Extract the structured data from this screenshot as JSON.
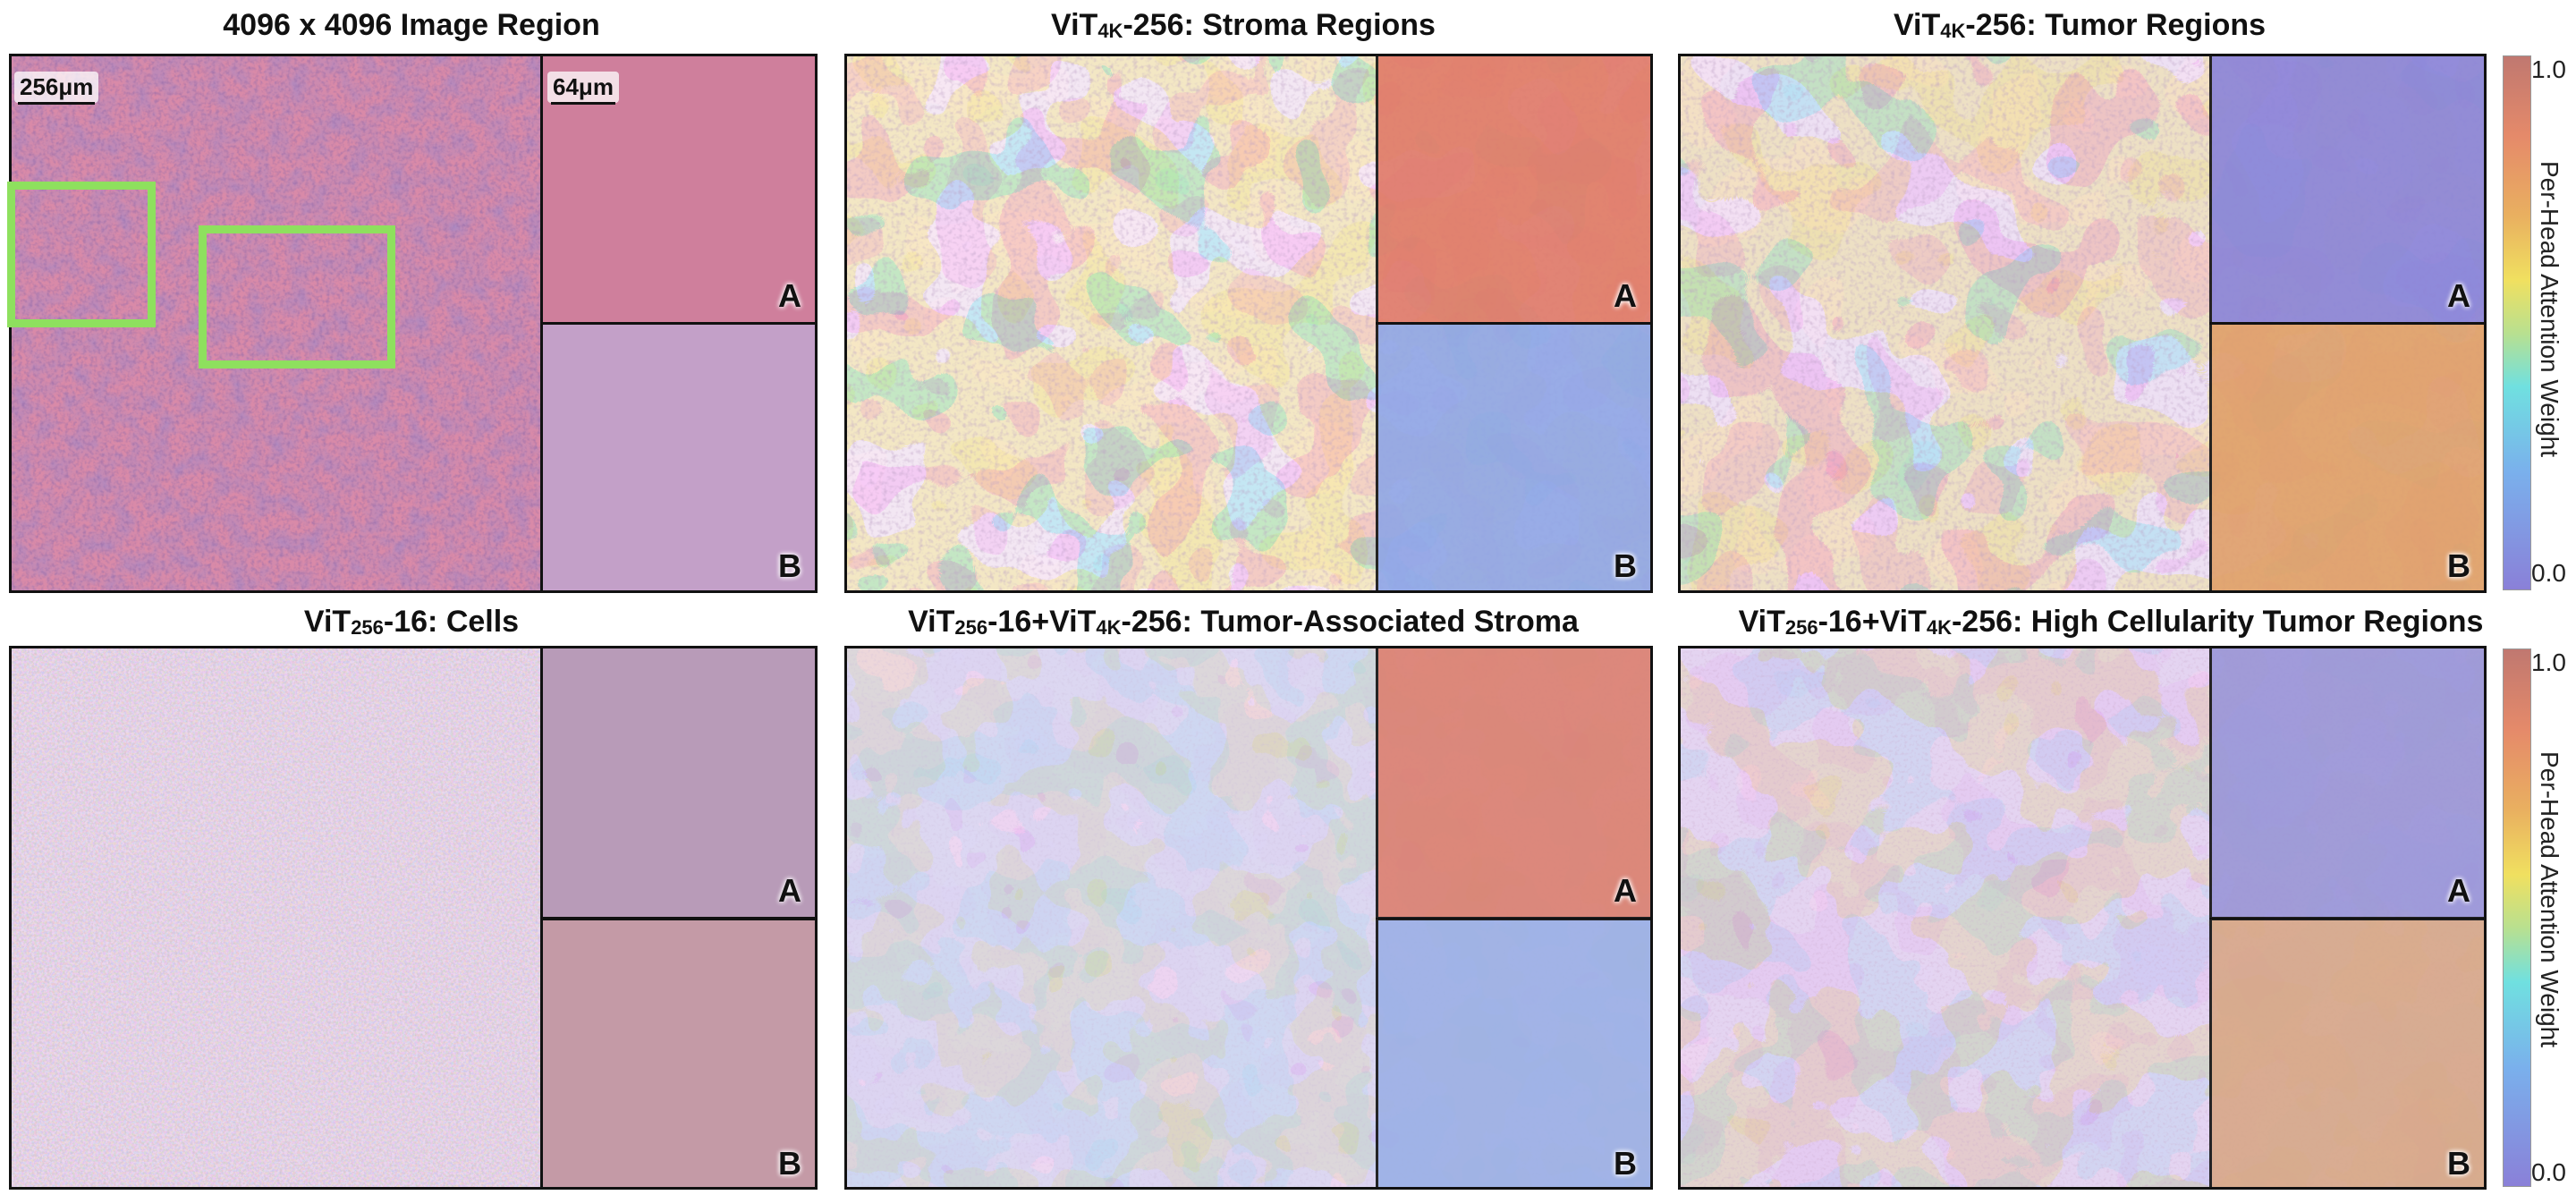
{
  "panels": [
    {
      "title_pre": "4096 x 4096 Image Region",
      "title_sub": "",
      "title_post": ""
    },
    {
      "title_pre": "ViT",
      "title_sub": "4K",
      "title_post": "-256: Stroma Regions"
    },
    {
      "title_pre": "ViT",
      "title_sub": "4K",
      "title_post": "-256: Tumor Regions"
    },
    {
      "title_pre": "ViT",
      "title_sub": "256",
      "title_post": "-16: Cells"
    },
    {
      "title_pre": "ViT",
      "title_sub": "256",
      "title_post": "-16+ViT"
    },
    {
      "title_pre": "ViT",
      "title_sub": "256",
      "title_post": "-16+ViT"
    }
  ],
  "panel5_tail": {
    "sub": "4K",
    "post": "-256: Tumor-Associated Stroma"
  },
  "panel6_tail": {
    "sub": "4K",
    "post": "-256: High Cellularity Tumor Regions"
  },
  "scale_bars": {
    "main": "256μm",
    "inset": "64μm"
  },
  "inset_labels": {
    "a": "A",
    "b": "B"
  },
  "colorbar": {
    "max": "1.0",
    "min": "0.0",
    "label": "Per-Head Attention Weight"
  },
  "colors": {
    "roi": "#8ee05e",
    "tissue_pink": "#d98aa8",
    "tissue_purple": "#6a3f86",
    "attn_high": "#e0605a",
    "attn_low": "#7a7ae8"
  }
}
